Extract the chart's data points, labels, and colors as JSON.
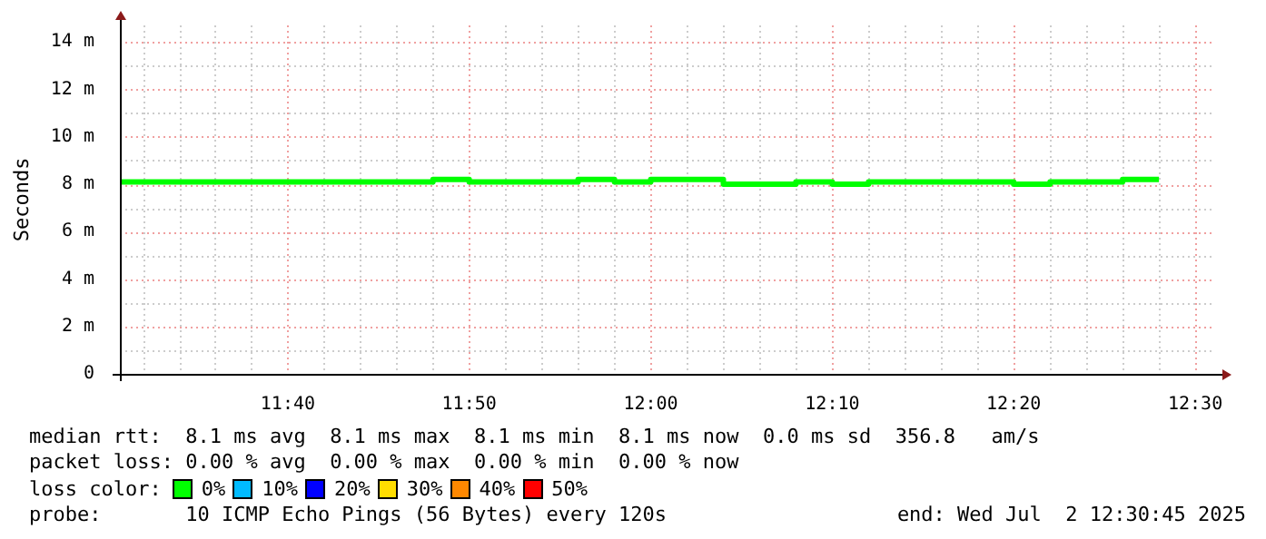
{
  "chart_data": {
    "type": "step",
    "ylabel": "Seconds",
    "x": [
      11.5125,
      11.5333,
      11.5667,
      11.6,
      11.6333,
      11.6667,
      11.7,
      11.7333,
      11.7667,
      11.8,
      11.8333,
      11.8667,
      11.9,
      11.9333,
      11.9667,
      12,
      12.0333,
      12.0667,
      12.1,
      12.1333,
      12.1667,
      12.2,
      12.2333,
      12.2667,
      12.3,
      12.3333,
      12.3667,
      12.4,
      12.4333,
      12.4667
    ],
    "series": [
      {
        "color": "#00ff00",
        "values": [
          8.1,
          8.1,
          8.1,
          8.1,
          8.1,
          8.1,
          8.1,
          8.1,
          8.1,
          8.2,
          8.1,
          8.1,
          8.1,
          8.2,
          8.1,
          8.2,
          8.2,
          8.0,
          8.0,
          8.1,
          8.0,
          8.1,
          8.1,
          8.1,
          8.1,
          8.0,
          8.1,
          8.1,
          8.2,
          8.2
        ]
      }
    ],
    "xlim": [
      11.5125,
      12.5183
    ],
    "xticks": [
      {
        "value": 11.6667,
        "label": "11:40"
      },
      {
        "value": 11.8333,
        "label": "11:50"
      },
      {
        "value": 12,
        "label": "12:00"
      },
      {
        "value": 12.1667,
        "label": "12:10"
      },
      {
        "value": 12.3333,
        "label": "12:20"
      },
      {
        "value": 12.5,
        "label": "12:30"
      }
    ],
    "ylim": [
      0,
      14.7
    ],
    "yticks": [
      {
        "value": 0,
        "label": "0"
      },
      {
        "value": 2,
        "label": "2 m"
      },
      {
        "value": 4,
        "label": "4 m"
      },
      {
        "value": 6,
        "label": "6 m"
      },
      {
        "value": 8,
        "label": "8 m"
      },
      {
        "value": 10,
        "label": "10 m"
      },
      {
        "value": 12,
        "label": "12 m"
      },
      {
        "value": 14,
        "label": "14 m"
      }
    ],
    "grid": true,
    "annotations": [
      "median rtt:  8.1 ms avg  8.1 ms max  8.1 ms min  8.1 ms now  0.0 ms sd  356.8   am/s",
      "packet loss: 0.00 % avg  0.00 % max  0.00 % min  0.00 % now",
      "loss color:",
      "0%",
      "10%",
      "20%",
      "30%",
      "40%",
      "50%",
      "probe:       10 ICMP Echo Pings (56 Bytes) every 120s",
      "end: Wed Jul  2 12:30:45 2025"
    ]
  }
}
